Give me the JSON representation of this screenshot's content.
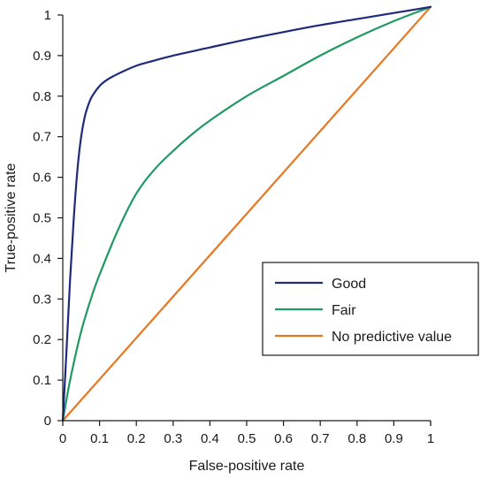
{
  "chart_data": {
    "type": "line",
    "title": "",
    "xlabel": "False-positive rate",
    "ylabel": "True-positive rate",
    "xlim": [
      0,
      1
    ],
    "ylim": [
      0,
      1
    ],
    "x_ticks": [
      0,
      0.1,
      0.2,
      0.3,
      0.4,
      0.5,
      0.6,
      0.7,
      0.8,
      0.9,
      1
    ],
    "x_tick_labels": [
      "0",
      "0.1",
      "0.2",
      "0.3",
      "0.4",
      "0.5",
      "0.6",
      "0.7",
      "0.8",
      "0.9",
      "1"
    ],
    "y_ticks": [
      0,
      0.1,
      0.2,
      0.3,
      0.4,
      0.5,
      0.6,
      0.7,
      0.8,
      0.9,
      1
    ],
    "y_tick_labels": [
      "0",
      "0.1",
      "0.2",
      "0.3",
      "0.4",
      "0.5",
      "0.6",
      "0.7",
      "0.8",
      "0.9",
      "1"
    ],
    "grid": false,
    "legend_position": "lower-right",
    "series": [
      {
        "name": "Good",
        "color": "#1f2a7a",
        "x": [
          0,
          0.01,
          0.02,
          0.03,
          0.04,
          0.05,
          0.06,
          0.07,
          0.08,
          0.1,
          0.12,
          0.15,
          0.2,
          0.25,
          0.3,
          0.4,
          0.5,
          0.6,
          0.7,
          0.8,
          0.9,
          1
        ],
        "y": [
          0,
          0.17,
          0.35,
          0.5,
          0.62,
          0.7,
          0.75,
          0.78,
          0.8,
          0.825,
          0.84,
          0.855,
          0.875,
          0.888,
          0.9,
          0.92,
          0.94,
          0.958,
          0.975,
          0.99,
          1.005,
          1.02
        ]
      },
      {
        "name": "Fair",
        "color": "#1f9a63",
        "x": [
          0,
          0.02,
          0.05,
          0.08,
          0.1,
          0.15,
          0.2,
          0.25,
          0.3,
          0.35,
          0.4,
          0.5,
          0.6,
          0.7,
          0.8,
          0.9,
          1
        ],
        "y": [
          0,
          0.1,
          0.22,
          0.31,
          0.36,
          0.47,
          0.56,
          0.62,
          0.665,
          0.705,
          0.74,
          0.8,
          0.85,
          0.9,
          0.945,
          0.985,
          1.02
        ]
      },
      {
        "name": "No predictive value",
        "color": "#e87722",
        "x": [
          0,
          1
        ],
        "y": [
          0,
          1.02
        ]
      }
    ]
  }
}
